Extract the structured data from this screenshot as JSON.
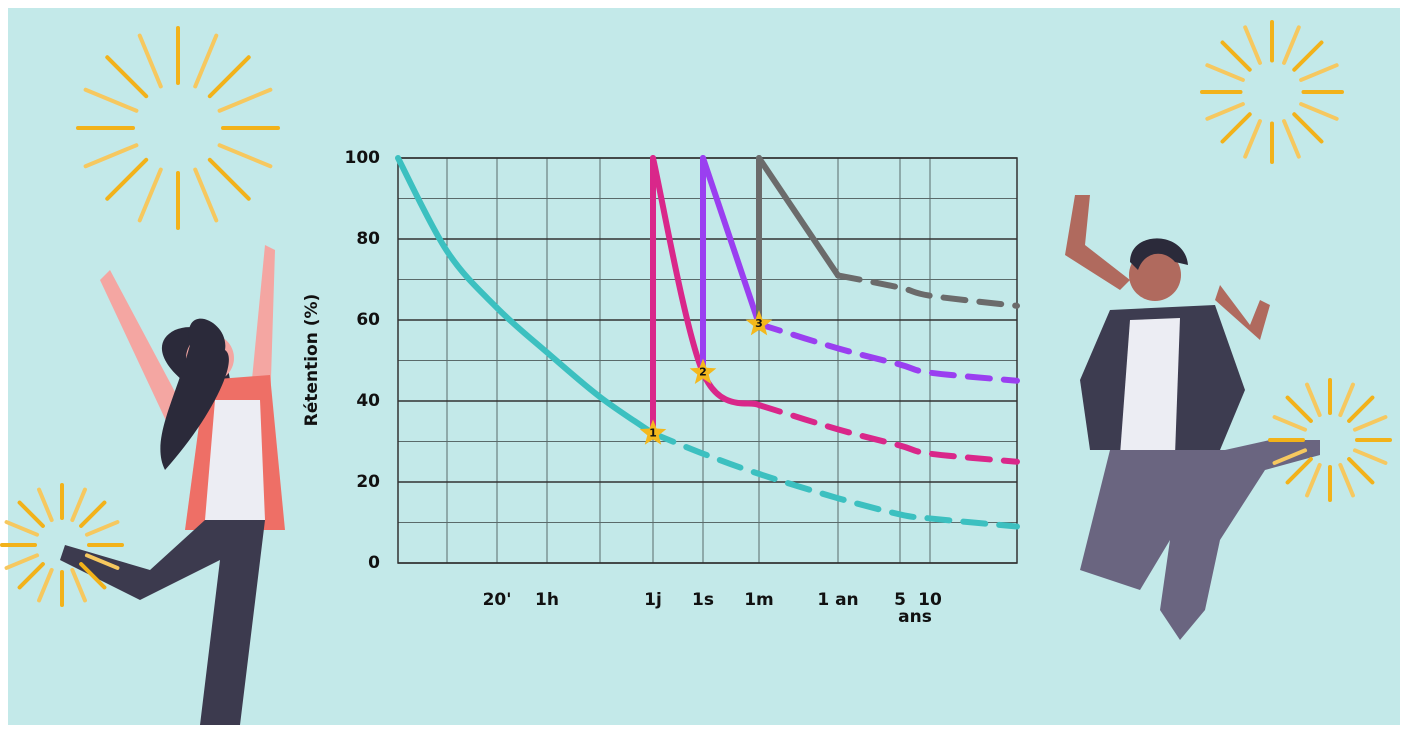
{
  "chart_data": {
    "type": "line",
    "y_label": "Rétention (%)",
    "categories": [
      null,
      null,
      "20'",
      "1h",
      null,
      "1j",
      "1s",
      "1m",
      "1 an",
      "5",
      "10",
      null
    ],
    "x_note": "ans",
    "ylim": [
      0,
      100
    ],
    "yticks": [
      0,
      20,
      40,
      60,
      80,
      100
    ],
    "y_minor_ticks": [
      10,
      30,
      50,
      70,
      90
    ],
    "grid": true,
    "annotations": [
      "1",
      "2",
      "3"
    ],
    "series": [
      {
        "color": "#3cc0c0",
        "dash_from": 5,
        "values": [
          100,
          77,
          63,
          52,
          41,
          32,
          27,
          22,
          16,
          12,
          11,
          9
        ]
      },
      {
        "color": "#d9278a",
        "dash_from": 7,
        "values": [
          null,
          null,
          null,
          null,
          null,
          100,
          47,
          39,
          33,
          29,
          27,
          25
        ]
      },
      {
        "color": "#9a3ff0",
        "dash_from": 7,
        "values": [
          null,
          null,
          null,
          null,
          null,
          null,
          100,
          59,
          53,
          49,
          47,
          45
        ]
      },
      {
        "color": "#6b6b6b",
        "dash_from": 8,
        "values": [
          null,
          null,
          null,
          null,
          null,
          null,
          null,
          100,
          71,
          68,
          66,
          63.5
        ]
      }
    ]
  }
}
